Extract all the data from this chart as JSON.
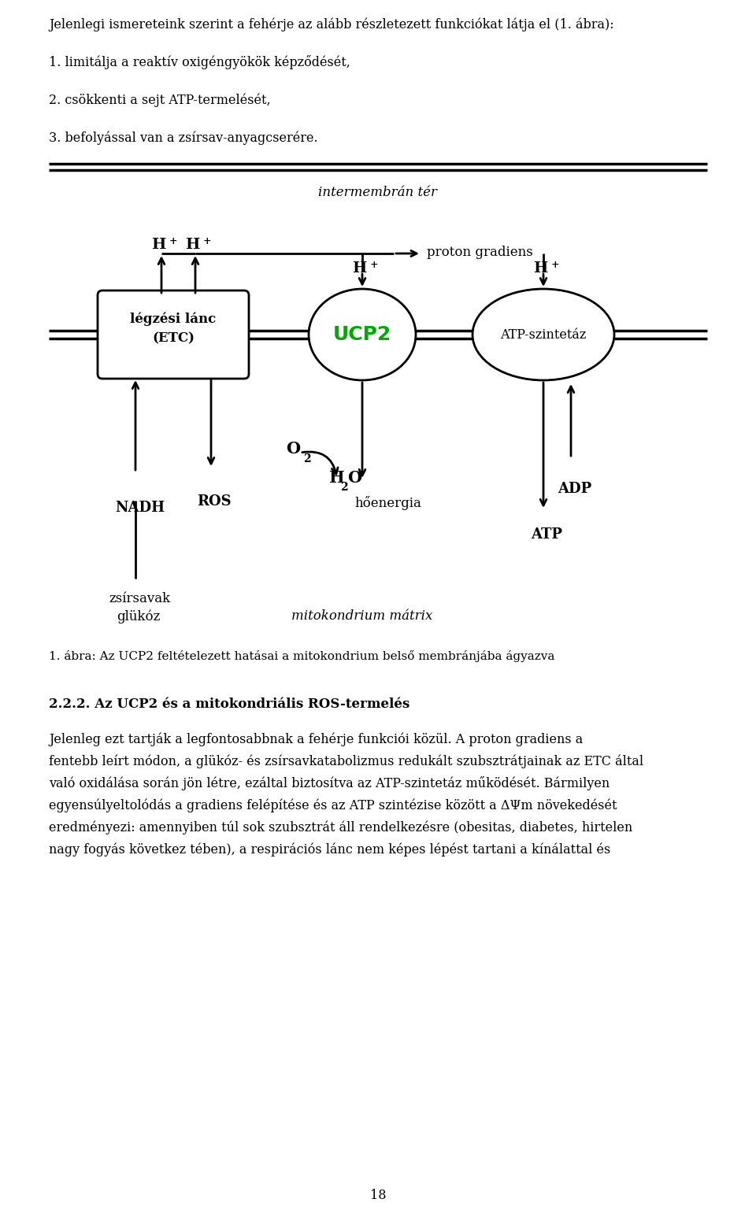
{
  "page_text_top": "Jelenlegi ismereteink szerint a fehérje az alább részletezett funkciókat látja el (1. ábra):",
  "item1": "1. limitálja a reaktív oxigéngyökök képződését,",
  "item2": "2. csökkenti a sejt ATP-termelését,",
  "item3": "3. befolyással van a zsírsav-anyagcserére.",
  "label_intermembran": "intermembrán tér",
  "label_proton_gradiens": "proton gradiens",
  "label_legzesi_line1": "légzési lánc",
  "label_legzesi_line2": "(ETC)",
  "label_ucp2": "UCP2",
  "label_atp_szintetaz": "ATP-szintetáz",
  "label_nadh": "NADH",
  "label_ros": "ROS",
  "label_hoenergia": "hőenergia",
  "label_adp": "ADP",
  "label_atp": "ATP",
  "label_zsirsavak": "zsírsavak",
  "label_glukoz": "glükóz",
  "label_mitokondrium": "mitokondrium mátrix",
  "caption": "1. ábra: Az UCP2 feltételezett hatásai a mitokondrium belső membránjába ágyazva",
  "section_title": "2.2.2. Az UCP2 és a mitokondriális ROS-termelés",
  "para_line1": "Jelenleg ezt tartják a legfontosabbnak a fehérje funkciói közül. A proton gradiens a",
  "para_line2": "fentebb leírt módon, a glükóz- és zsírsavkatabolizmus redukált szubsztrátjainak az ETC által",
  "para_line3": "való oxidálása során jön létre, ezáltal biztosítva az ATP-szintetáz működését. Bármilyen",
  "para_line4": "egyensúlyeltolódás a gradiens felépítése és az ATP szintézise között a ΔΨm növekedését",
  "para_line5": "eredményezi: amennyiben túl sok szubsztrát áll rendelkezésre (obesitas, diabetes, hirtelen",
  "para_line6": "nagy fogyás következ tében), a respirációs lánc nem képes lépést tartani a kínálattal és",
  "page_number": "18",
  "ucp2_color": "#00AA00",
  "black": "#000000",
  "white": "#ffffff",
  "bg_color": "#ffffff"
}
